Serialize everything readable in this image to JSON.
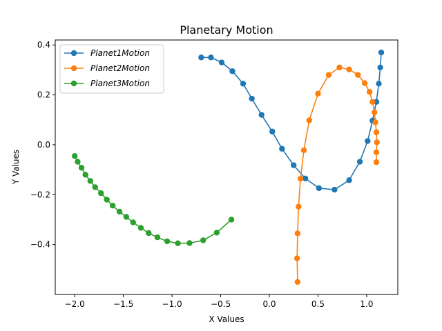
{
  "chart_data": {
    "type": "line",
    "title": "Planetary Motion",
    "xlabel": "X Values",
    "ylabel": "Y Values",
    "xlim": [
      -2.2,
      1.32
    ],
    "ylim": [
      -0.6,
      0.42
    ],
    "xticks": [
      -2.0,
      -1.5,
      -1.0,
      -0.5,
      0.0,
      0.5,
      1.0
    ],
    "xtick_labels": [
      "−2.0",
      "−1.5",
      "−1.0",
      "−0.5",
      "0.0",
      "0.5",
      "1.0"
    ],
    "yticks": [
      -0.4,
      -0.2,
      0.0,
      0.2,
      0.4
    ],
    "ytick_labels": [
      "−0.4",
      "−0.2",
      "0.0",
      "0.2",
      "0.4"
    ],
    "grid": false,
    "legend_position": "upper-left",
    "series": [
      {
        "name": "Planet1Motion",
        "color": "#1f77b4",
        "points": [
          [
            -0.7,
            0.35
          ],
          [
            -0.6,
            0.35
          ],
          [
            -0.49,
            0.33
          ],
          [
            -0.38,
            0.295
          ],
          [
            -0.27,
            0.245
          ],
          [
            -0.18,
            0.185
          ],
          [
            -0.08,
            0.12
          ],
          [
            0.03,
            0.053
          ],
          [
            0.13,
            -0.016
          ],
          [
            0.25,
            -0.082
          ],
          [
            0.37,
            -0.135
          ],
          [
            0.51,
            -0.174
          ],
          [
            0.67,
            -0.18
          ],
          [
            0.82,
            -0.142
          ],
          [
            0.93,
            -0.068
          ],
          [
            1.01,
            0.015
          ],
          [
            1.06,
            0.097
          ],
          [
            1.1,
            0.172
          ],
          [
            1.125,
            0.245
          ],
          [
            1.14,
            0.31
          ],
          [
            1.15,
            0.37
          ]
        ]
      },
      {
        "name": "Planet2Motion",
        "color": "#ff7f0e",
        "points": [
          [
            0.29,
            -0.55
          ],
          [
            0.285,
            -0.455
          ],
          [
            0.29,
            -0.355
          ],
          [
            0.3,
            -0.248
          ],
          [
            0.32,
            -0.136
          ],
          [
            0.355,
            -0.022
          ],
          [
            0.41,
            0.098
          ],
          [
            0.5,
            0.205
          ],
          [
            0.61,
            0.28
          ],
          [
            0.72,
            0.31
          ],
          [
            0.82,
            0.302
          ],
          [
            0.91,
            0.28
          ],
          [
            0.98,
            0.247
          ],
          [
            1.03,
            0.212
          ],
          [
            1.06,
            0.172
          ],
          [
            1.08,
            0.13
          ],
          [
            1.09,
            0.09
          ],
          [
            1.1,
            0.05
          ],
          [
            1.105,
            0.01
          ],
          [
            1.1,
            -0.03
          ],
          [
            1.1,
            -0.07
          ]
        ]
      },
      {
        "name": "Planet3Motion",
        "color": "#2ca02c",
        "points": [
          [
            -2.0,
            -0.045
          ],
          [
            -1.97,
            -0.068
          ],
          [
            -1.93,
            -0.092
          ],
          [
            -1.89,
            -0.12
          ],
          [
            -1.84,
            -0.145
          ],
          [
            -1.79,
            -0.17
          ],
          [
            -1.73,
            -0.194
          ],
          [
            -1.67,
            -0.22
          ],
          [
            -1.61,
            -0.244
          ],
          [
            -1.54,
            -0.268
          ],
          [
            -1.47,
            -0.289
          ],
          [
            -1.4,
            -0.311
          ],
          [
            -1.32,
            -0.333
          ],
          [
            -1.24,
            -0.354
          ],
          [
            -1.15,
            -0.371
          ],
          [
            -1.05,
            -0.387
          ],
          [
            -0.94,
            -0.395
          ],
          [
            -0.82,
            -0.394
          ],
          [
            -0.68,
            -0.383
          ],
          [
            -0.54,
            -0.352
          ],
          [
            -0.39,
            -0.3
          ]
        ]
      }
    ]
  }
}
